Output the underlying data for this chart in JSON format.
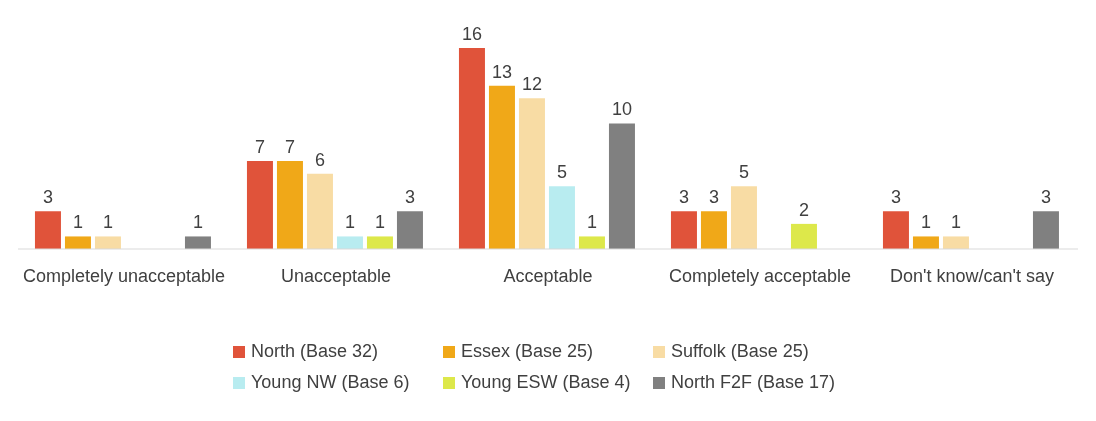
{
  "chart_data": {
    "type": "bar",
    "categories": [
      "Completely unacceptable",
      "Unacceptable",
      "Acceptable",
      "Completely acceptable",
      "Don't know/can't say"
    ],
    "series": [
      {
        "name": "North (Base 32)",
        "color": "#e0533a",
        "values": [
          3,
          7,
          16,
          3,
          3
        ]
      },
      {
        "name": "Essex (Base 25)",
        "color": "#f0a818",
        "values": [
          1,
          7,
          13,
          3,
          1
        ]
      },
      {
        "name": "Suffolk (Base 25)",
        "color": "#f8dca4",
        "values": [
          1,
          6,
          12,
          5,
          1
        ]
      },
      {
        "name": "Young NW (Base 6)",
        "color": "#b8ecf0",
        "values": [
          null,
          1,
          5,
          null,
          null
        ]
      },
      {
        "name": "Young ESW (Base 4)",
        "color": "#dde84a",
        "values": [
          null,
          1,
          1,
          2,
          null
        ]
      },
      {
        "name": "North F2F (Base 17)",
        "color": "#808080",
        "values": [
          1,
          3,
          10,
          null,
          3
        ]
      }
    ],
    "data_labels": true,
    "legend": "bottom",
    "grid": false
  }
}
